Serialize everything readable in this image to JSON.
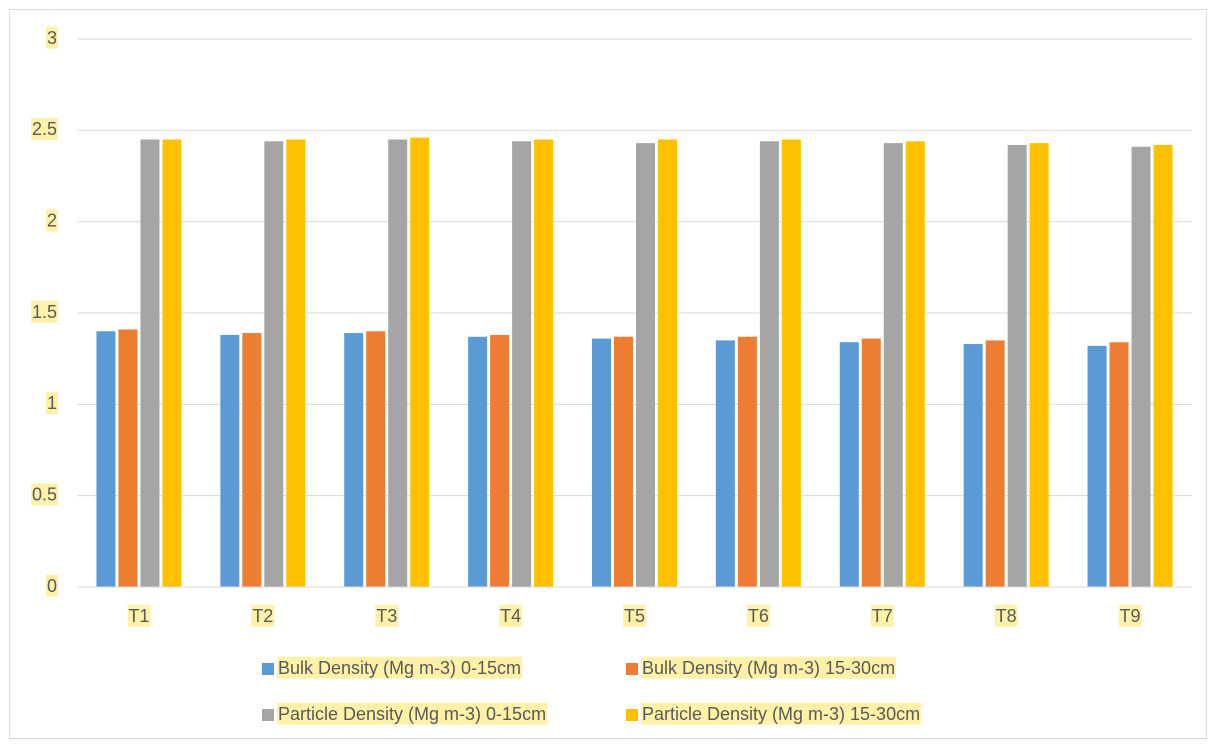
{
  "chart_data": {
    "type": "bar",
    "title": "",
    "xlabel": "",
    "ylabel": "",
    "categories": [
      "T1",
      "T2",
      "T3",
      "T4",
      "T5",
      "T6",
      "T7",
      "T8",
      "T9"
    ],
    "ylim": [
      0,
      3
    ],
    "yticks": [
      "0",
      "0.5",
      "1",
      "1.5",
      "2",
      "2.5",
      "3"
    ],
    "grid": true,
    "legend_position": "bottom",
    "highlight_color": "#fff2a8",
    "series": [
      {
        "name": "Bulk Density (Mg m-3) 0-15cm",
        "color": "#5b9bd5",
        "values": [
          1.4,
          1.38,
          1.39,
          1.37,
          1.36,
          1.35,
          1.34,
          1.33,
          1.32
        ]
      },
      {
        "name": "Bulk Density (Mg m-3) 15-30cm",
        "color": "#ed7d31",
        "values": [
          1.41,
          1.39,
          1.4,
          1.38,
          1.37,
          1.37,
          1.36,
          1.35,
          1.34
        ]
      },
      {
        "name": "Particle Density (Mg m-3) 0-15cm",
        "color": "#a5a5a5",
        "values": [
          2.45,
          2.44,
          2.45,
          2.44,
          2.43,
          2.44,
          2.43,
          2.42,
          2.41
        ]
      },
      {
        "name": "Particle Density (Mg m-3) 15-30cm",
        "color": "#ffc000",
        "values": [
          2.45,
          2.45,
          2.46,
          2.45,
          2.45,
          2.45,
          2.44,
          2.43,
          2.42
        ]
      }
    ]
  }
}
